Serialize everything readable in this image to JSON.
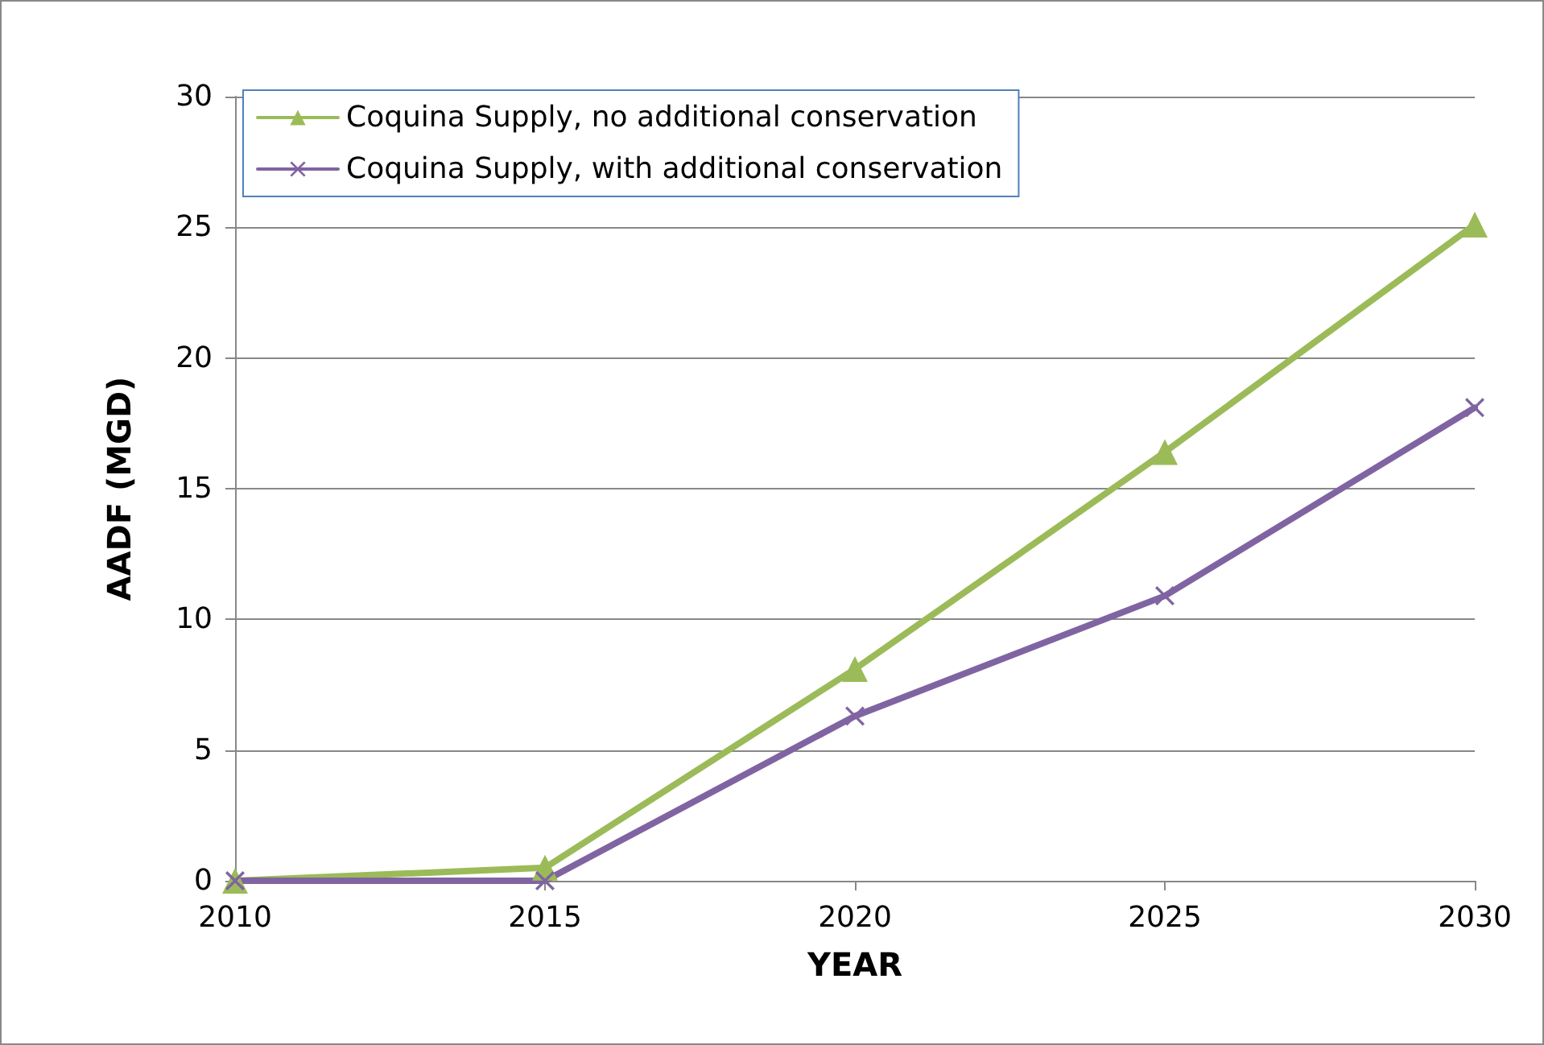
{
  "chart_data": {
    "type": "line",
    "xlabel": "YEAR",
    "ylabel": "AADF (MGD)",
    "x": [
      2010,
      2015,
      2020,
      2025,
      2030
    ],
    "series": [
      {
        "name": "Coquina Supply, no additional conservation",
        "color": "#9bbb59",
        "marker": "triangle",
        "values": [
          0,
          0.5,
          8.1,
          16.4,
          25.1
        ]
      },
      {
        "name": "Coquina Supply, with additional conservation",
        "color": "#8064a2",
        "marker": "cross",
        "values": [
          0,
          0,
          6.3,
          10.9,
          18.1
        ]
      }
    ],
    "xlim": [
      2010,
      2030
    ],
    "xticks": [
      2010,
      2015,
      2020,
      2025,
      2030
    ],
    "ylim": [
      0,
      30
    ],
    "yticks": [
      0,
      5,
      10,
      15,
      20,
      25,
      30
    ],
    "grid": "y",
    "legend": "top left"
  }
}
